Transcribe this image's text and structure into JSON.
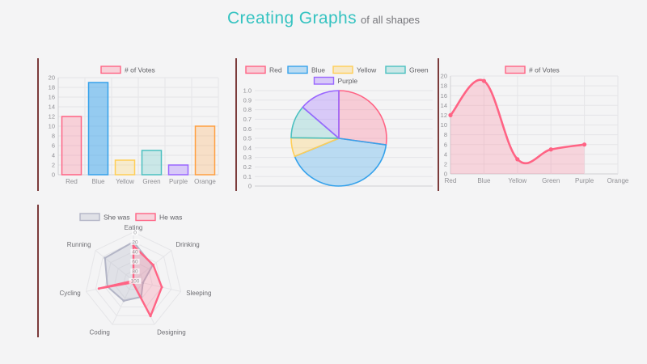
{
  "header": {
    "title_main": "Creating Graphs",
    "title_sub": "of all shapes"
  },
  "colors": {
    "background": "#f4f4f5",
    "accent_teal": "#35c3c1",
    "panel_border": "#7b3b3b",
    "grid": "#e5e5e8",
    "axis": "#cfcfd4",
    "tick_text": "#8f8f94",
    "category_text": "#8f8f94",
    "legend_text": "#606065",
    "radar_axis_label": "#6e6e73",
    "radar_tick_backdrop": "rgba(255,255,255,0.75)"
  },
  "chart_data": [
    {
      "id": "bar",
      "type": "bar",
      "legend": [
        {
          "label": "# of Votes",
          "stroke": "#ff6384",
          "fill": "rgba(255,99,132,0.25)"
        }
      ],
      "legend_position": "top",
      "categories": [
        "Red",
        "Blue",
        "Yellow",
        "Green",
        "Purple",
        "Orange"
      ],
      "values": [
        12,
        19,
        3,
        5,
        2,
        10
      ],
      "ylim": [
        0,
        20
      ],
      "y_ticks": [
        "0",
        "2",
        "4",
        "6",
        "8",
        "10",
        "12",
        "14",
        "16",
        "18",
        "20"
      ],
      "grid": true,
      "bar_strokes": [
        "#ff6384",
        "#36a2eb",
        "#ffce56",
        "#4bc0c0",
        "#9966ff",
        "#ff9f40"
      ],
      "bar_fills": [
        "rgba(255,99,132,0.25)",
        "rgba(54,162,235,0.5)",
        "rgba(255,206,86,0.25)",
        "rgba(75,192,192,0.25)",
        "rgba(153,102,255,0.3)",
        "rgba(255,159,64,0.25)"
      ]
    },
    {
      "id": "pie",
      "type": "pie",
      "labels": [
        "Red",
        "Blue",
        "Yellow",
        "Green",
        "Purple"
      ],
      "values_pct_of_circle": [
        27.2,
        41.6,
        6.4,
        11.1,
        13.7
      ],
      "start_angle": "top",
      "direction": "clockwise",
      "legend_position": "top",
      "ylim": [
        0,
        1
      ],
      "y_ticks": [
        "1.0",
        "0.9",
        "0.8",
        "0.7",
        "0.6",
        "0.5",
        "0.4",
        "0.3",
        "0.2",
        "0.1",
        "0"
      ],
      "slice_strokes": [
        "#ff6384",
        "#36a2eb",
        "#ffce56",
        "#4bc0c0",
        "#9966ff"
      ],
      "slice_fills": [
        "rgba(255,99,132,0.28)",
        "rgba(54,162,235,0.3)",
        "rgba(255,206,86,0.3)",
        "rgba(75,192,192,0.25)",
        "rgba(153,102,255,0.3)"
      ]
    },
    {
      "id": "line",
      "type": "line",
      "legend": [
        {
          "label": "# of Votes",
          "stroke": "#ff6384",
          "fill": "rgba(255,99,132,0.25)"
        }
      ],
      "legend_position": "top",
      "categories": [
        "Red",
        "Blue",
        "Yellow",
        "Green",
        "Purple",
        "Orange"
      ],
      "values": [
        12,
        19,
        3,
        5,
        6
      ],
      "smooth": true,
      "area": true,
      "line_color": "#ff6384",
      "area_fill": "rgba(255,99,132,0.22)",
      "ylim": [
        0,
        20
      ],
      "y_ticks": [
        "0",
        "2",
        "4",
        "6",
        "8",
        "10",
        "12",
        "14",
        "16",
        "18",
        "20"
      ],
      "grid": true
    },
    {
      "id": "radar",
      "type": "radar",
      "axes": [
        "Eating",
        "Drinking",
        "Sleeping",
        "Designing",
        "Coding",
        "Cycling",
        "Running"
      ],
      "scale": {
        "min": 0,
        "max": 100,
        "step": 20,
        "reversed": true,
        "ticks": [
          "0",
          "20",
          "40",
          "60",
          "80",
          "100"
        ]
      },
      "legend_position": "top",
      "series": [
        {
          "name": "She was",
          "stroke": "#b3b5c6",
          "fill": "rgba(179,181,198,0.3)",
          "values": [
            20,
            50,
            80,
            63,
            54,
            45,
            25
          ]
        },
        {
          "name": "He was",
          "stroke": "#ff6384",
          "fill": "rgba(255,99,132,0.22)",
          "values": [
            28,
            48,
            40,
            19,
            96,
            27,
            100
          ]
        }
      ]
    }
  ]
}
